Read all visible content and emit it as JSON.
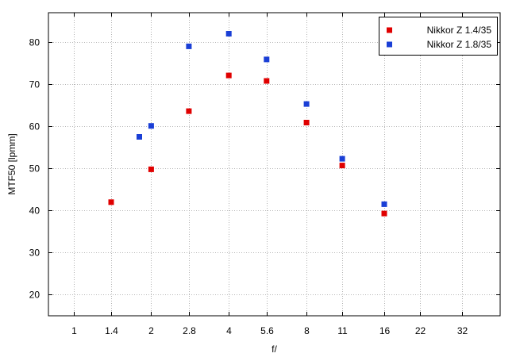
{
  "chart_data": {
    "type": "scatter",
    "xlabel": "f/",
    "ylabel": "MTF50 [lpmm]",
    "x_scale": "log2",
    "x_ticks": [
      "1",
      "1.4",
      "2",
      "2.8",
      "4",
      "5.6",
      "8",
      "11",
      "16",
      "22",
      "32"
    ],
    "x_tick_values": [
      1,
      1.4,
      2,
      2.8,
      4,
      5.6,
      8,
      11,
      16,
      22,
      32
    ],
    "xlim": [
      0.8,
      45
    ],
    "y_ticks": [
      "20",
      "30",
      "40",
      "50",
      "60",
      "70",
      "80"
    ],
    "y_tick_values": [
      20,
      30,
      40,
      50,
      60,
      70,
      80
    ],
    "ylim": [
      15,
      87
    ],
    "grid": true,
    "legend_position": "top-right",
    "series": [
      {
        "name": "Nikkor Z 1.4/35",
        "color": "#e00000",
        "points": [
          {
            "x": 1.4,
            "y": 42.0
          },
          {
            "x": 2.0,
            "y": 49.8
          },
          {
            "x": 2.8,
            "y": 63.6
          },
          {
            "x": 4.0,
            "y": 72.1
          },
          {
            "x": 5.6,
            "y": 70.8
          },
          {
            "x": 8.0,
            "y": 60.9
          },
          {
            "x": 11.0,
            "y": 50.7
          },
          {
            "x": 16.0,
            "y": 39.3
          }
        ]
      },
      {
        "name": "Nikkor Z 1.8/35",
        "color": "#1a3fd6",
        "points": [
          {
            "x": 1.8,
            "y": 57.5
          },
          {
            "x": 2.0,
            "y": 60.1
          },
          {
            "x": 2.8,
            "y": 79.0
          },
          {
            "x": 4.0,
            "y": 82.0
          },
          {
            "x": 5.6,
            "y": 75.9
          },
          {
            "x": 8.0,
            "y": 65.3
          },
          {
            "x": 11.0,
            "y": 52.3
          },
          {
            "x": 16.0,
            "y": 41.5
          }
        ]
      }
    ]
  }
}
